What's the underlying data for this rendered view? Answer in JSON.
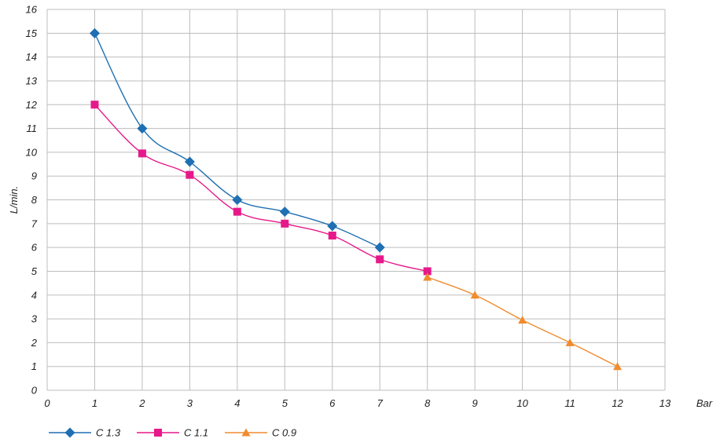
{
  "chart_data": {
    "type": "line",
    "xlabel": "Bar",
    "ylabel": "L/min.",
    "xlim": [
      0,
      13
    ],
    "ylim": [
      0,
      16
    ],
    "xticks": [
      0,
      1,
      2,
      3,
      4,
      5,
      6,
      7,
      8,
      9,
      10,
      11,
      12,
      13
    ],
    "yticks": [
      0,
      1,
      2,
      3,
      4,
      5,
      6,
      7,
      8,
      9,
      10,
      11,
      12,
      13,
      14,
      15,
      16
    ],
    "grid": true,
    "legend_position": "bottom-left",
    "series": [
      {
        "name": "C 1.3",
        "color": "#1f6fb2",
        "marker": "diamond",
        "x": [
          1,
          2,
          3,
          4,
          5,
          6,
          7
        ],
        "y": [
          15,
          11,
          9.6,
          8,
          7.5,
          6.9,
          6
        ]
      },
      {
        "name": "C 1.1",
        "color": "#e6198a",
        "marker": "square",
        "x": [
          1,
          2,
          3,
          4,
          5,
          6,
          7,
          8
        ],
        "y": [
          12,
          9.95,
          9.05,
          7.5,
          7,
          6.5,
          5.5,
          5
        ]
      },
      {
        "name": "C 0.9",
        "color": "#f08c2e",
        "marker": "triangle",
        "x": [
          8,
          9,
          10,
          11,
          12
        ],
        "y": [
          4.75,
          4,
          2.95,
          2,
          1
        ]
      }
    ]
  }
}
